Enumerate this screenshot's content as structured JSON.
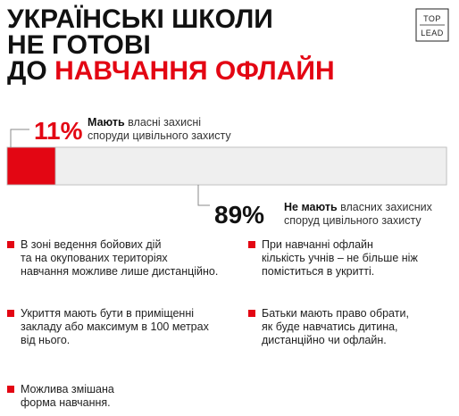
{
  "header": {
    "title_lines": [
      "УКРАЇНСЬКІ ШКОЛИ",
      "НЕ ГОТОВІ"
    ],
    "title_prefix": "ДО",
    "title_highlight": "НАВЧАННЯ ОФЛАЙН",
    "logo": [
      "TOP",
      "LEAD"
    ]
  },
  "chart_data": {
    "type": "bar",
    "orientation": "horizontal",
    "stacked": true,
    "xlim": [
      0,
      100
    ],
    "series": [
      {
        "name_bold": "Мають",
        "name_lines": [
          "власні захисні",
          "споруди цивільного захисту"
        ],
        "values": [
          11
        ],
        "value_labels": [
          "11%"
        ],
        "color": "#e30613"
      },
      {
        "name_bold": "Не мають",
        "name_lines": [
          "власних захисних",
          "споруд цивільного захисту"
        ],
        "values": [
          89
        ],
        "value_labels": [
          "89%"
        ],
        "color": "#efefef"
      }
    ]
  },
  "notes": [
    {
      "lines": [
        "В зоні ведення бойових дій",
        "та на окупованих територіях",
        "навчання можливе лише дистанційно."
      ]
    },
    {
      "lines": [
        "При навчанні офлайн",
        "кількість учнів – не більше ніж",
        "поміститься в укритті."
      ]
    },
    {
      "lines": [
        "Укриття мають бути в приміщенні",
        "закладу або максимум в 100 метрах",
        "від нього."
      ]
    },
    {
      "lines": [
        "Батьки мають право обрати,",
        "як буде навчатись дитина,",
        "дистанційно чи офлайн."
      ]
    },
    {
      "lines": [
        "Можлива змішана",
        "форма навчання."
      ]
    }
  ]
}
